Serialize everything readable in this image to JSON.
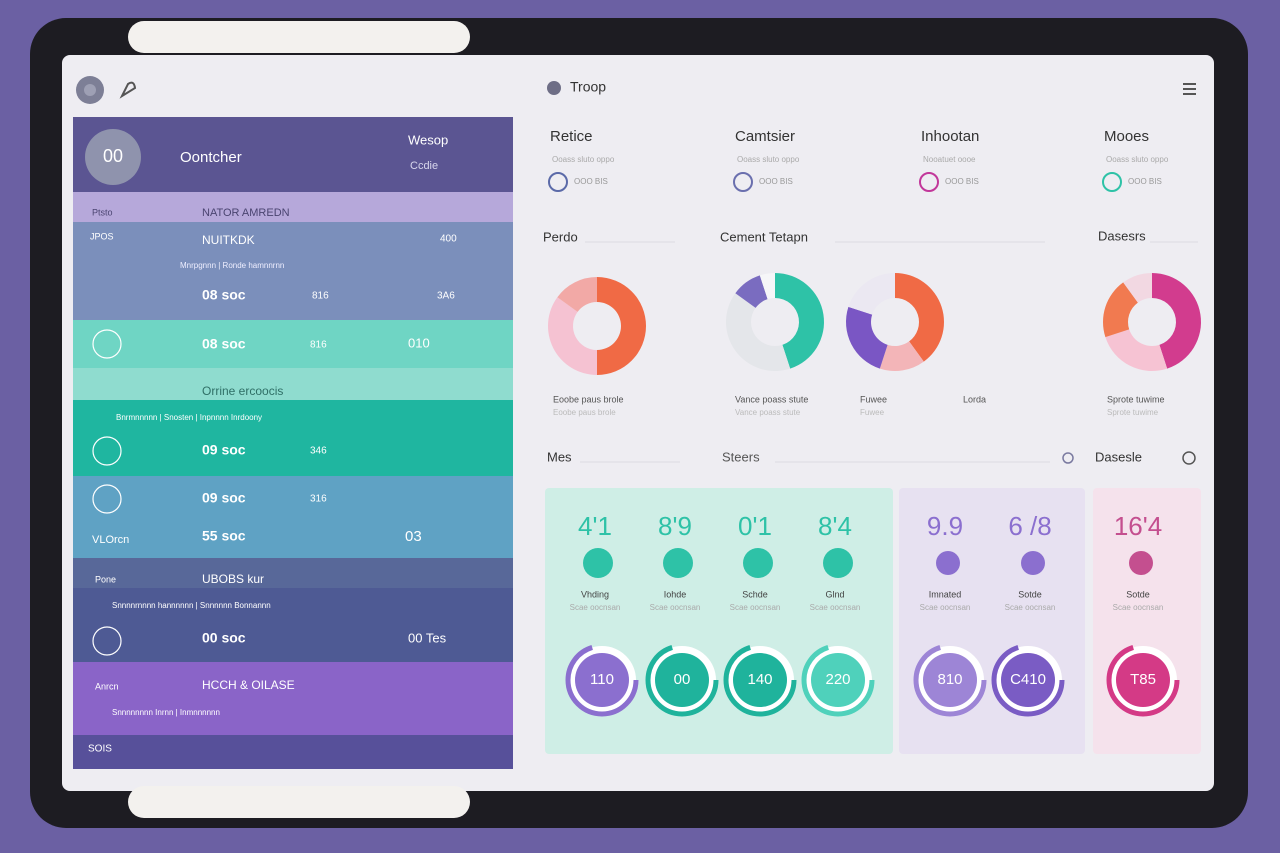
{
  "header": {
    "title": "Troop"
  },
  "stats": [
    {
      "title": "Retice",
      "sub": "Ooass sluto oppo",
      "badge": "OOO BIS",
      "color": "#5b6aa8"
    },
    {
      "title": "Camtsier",
      "sub": "Ooass sluto oppo",
      "badge": "OOO BIS",
      "color": "#6a6fae"
    },
    {
      "title": "Inhootan",
      "sub": "Nooatuet oooe",
      "badge": "OOO BIS",
      "color": "#c2379a"
    },
    {
      "title": "Mooes",
      "sub": "Ooass sluto oppo",
      "badge": "OOO BIS",
      "color": "#2ec2a7"
    }
  ],
  "sections": {
    "charts_left": "Perdo",
    "charts_mid": "Cement Tetapn",
    "charts_right": "Dasesrs",
    "stats_left": "Mes",
    "stats_mid": "Steers",
    "stats_right": "Dasesle"
  },
  "donuts": [
    {
      "caption": "Eoobe paus brole",
      "segments": [
        {
          "value": 50,
          "color": "#f06a45"
        },
        {
          "value": 35,
          "color": "#f5c2d2"
        },
        {
          "value": 15,
          "color": "#f2a9a6"
        }
      ]
    },
    {
      "caption": "Vance poass stute",
      "segments": [
        {
          "value": 45,
          "color": "#2ec2a7"
        },
        {
          "value": 40,
          "color": "#e4e6ea"
        },
        {
          "value": 10,
          "color": "#7a6cc0"
        },
        {
          "value": 5,
          "color": "#f6f6f8"
        }
      ]
    },
    {
      "caption": "Fuwee",
      "segments": [
        {
          "value": 40,
          "color": "#f06a45"
        },
        {
          "value": 15,
          "color": "#f3b5b8"
        },
        {
          "value": 25,
          "color": "#7a56c4"
        },
        {
          "value": 20,
          "color": "#ebe8f2"
        }
      ]
    },
    {
      "caption": "Sprote tuwime",
      "segments": [
        {
          "value": 45,
          "color": "#d23c8e"
        },
        {
          "value": 25,
          "color": "#f6c3d3"
        },
        {
          "value": 20,
          "color": "#f17a50"
        },
        {
          "value": 10,
          "color": "#f2d8e2"
        }
      ]
    }
  ],
  "extra_caption": "Lorda",
  "metrics": [
    {
      "value": "4'1",
      "label": "Vhding",
      "sub": "Scae oocnsan",
      "gauge": "110",
      "color": "#2ec2a7",
      "ring": "#8b6fcf"
    },
    {
      "value": "8'9",
      "label": "Iohde",
      "sub": "Scae oocnsan",
      "gauge": "00",
      "color": "#2ec2a7",
      "ring": "#1fb39c"
    },
    {
      "value": "0'1",
      "label": "Schde",
      "sub": "Scae oocnsan",
      "gauge": "140",
      "color": "#2ec2a7",
      "ring": "#1fb39c"
    },
    {
      "value": "8'4",
      "label": "Glnd",
      "sub": "Scae oocnsan",
      "gauge": "220",
      "color": "#2ec2a7",
      "ring": "#4fd1bb"
    },
    {
      "value": "9.9",
      "label": "Imnated",
      "sub": "Scae oocnsan",
      "gauge": "810",
      "color": "#8b6fcf",
      "ring": "#9d85d6"
    },
    {
      "value": "6 /8",
      "label": "Sotde",
      "sub": "Scae oocnsan",
      "gauge": "C410",
      "color": "#8b6fcf",
      "ring": "#7a5cc4"
    },
    {
      "value": "16'4",
      "label": "Sotde",
      "sub": "Scae oocnsan",
      "gauge": "T85",
      "color": "#c44f8f",
      "ring": "#d43a86"
    }
  ],
  "left_panel": {
    "avatar": "00",
    "name": "Oontcher",
    "right_title": "Wesop",
    "right_sub": "Ccdie",
    "items": [
      "Ptsto",
      "NATOR AMREDN",
      "JPOS",
      "NUITKDK",
      "400",
      "Mnrpgnnn | Ronde hamnnrnn",
      "08 soc",
      "816",
      "3A6",
      "08 soc",
      "816",
      "010",
      "Orrine ercoocis",
      "Bnrmnnnnn | Snosten | Inpnnnn Inrdoony",
      "09 soc",
      "346",
      "09 soc",
      "316",
      "VLOrcn",
      "55 soc",
      "03",
      "Pone",
      "UBOBS kur",
      "Snnnnrnnnn hannnnnn | Snnnnnn Bonnannn",
      "00 soc",
      "00 Tes",
      "Anrcn",
      "HCCH & OILASE",
      "Snnnnnnnn Inrnn | Inmnnnnnn",
      "SOIS"
    ]
  }
}
